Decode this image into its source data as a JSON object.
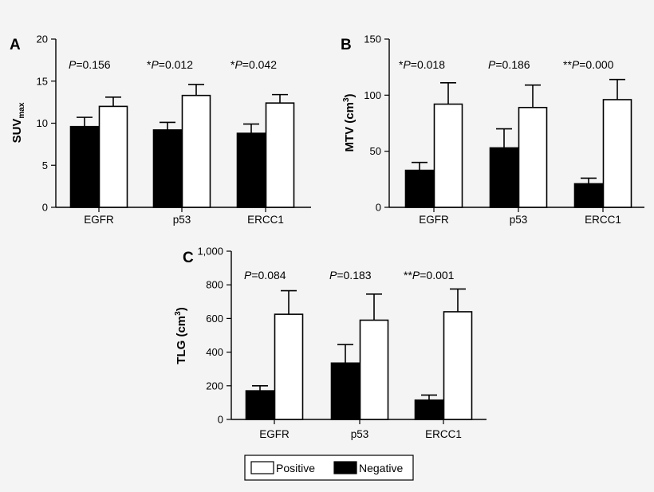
{
  "chart_data": [
    {
      "panel": "A",
      "type": "bar",
      "ylabel_main": "SUV",
      "ylabel_sub": "max",
      "categories": [
        "EGFR",
        "p53",
        "ERCC1"
      ],
      "series": [
        {
          "name": "Negative",
          "values": [
            9.6,
            9.2,
            8.8
          ],
          "errors": [
            1.1,
            0.9,
            1.1
          ]
        },
        {
          "name": "Positive",
          "values": [
            12.0,
            13.3,
            12.4
          ],
          "errors": [
            1.1,
            1.3,
            1.0
          ]
        }
      ],
      "annotations": [
        {
          "prefix": "",
          "p": "P",
          "text": "=0.156"
        },
        {
          "prefix": "*",
          "p": "P",
          "text": "=0.012"
        },
        {
          "prefix": "*",
          "p": "P",
          "text": "=0.042"
        }
      ],
      "ylim": [
        0,
        20
      ],
      "yticks": [
        0,
        5,
        10,
        15,
        20
      ],
      "ytick_labels": [
        "0",
        "5",
        "10",
        "15",
        "20"
      ]
    },
    {
      "panel": "B",
      "type": "bar",
      "ylabel_main": "MTV (cm",
      "ylabel_sup": "3",
      "ylabel_end": ")",
      "categories": [
        "EGFR",
        "p53",
        "ERCC1"
      ],
      "series": [
        {
          "name": "Negative",
          "values": [
            33,
            53,
            21
          ],
          "errors": [
            7,
            17,
            5
          ]
        },
        {
          "name": "Positive",
          "values": [
            92,
            89,
            96
          ],
          "errors": [
            19,
            20,
            18
          ]
        }
      ],
      "annotations": [
        {
          "prefix": "*",
          "p": "P",
          "text": "=0.018"
        },
        {
          "prefix": "",
          "p": "P",
          "text": "=0.186"
        },
        {
          "prefix": "**",
          "p": "P",
          "text": "=0.000"
        }
      ],
      "ylim": [
        0,
        150
      ],
      "yticks": [
        0,
        50,
        100,
        150
      ],
      "ytick_labels": [
        "0",
        "50",
        "100",
        "150"
      ]
    },
    {
      "panel": "C",
      "type": "bar",
      "ylabel_main": "TLG (cm",
      "ylabel_sup": "3",
      "ylabel_end": ")",
      "categories": [
        "EGFR",
        "p53",
        "ERCC1"
      ],
      "series": [
        {
          "name": "Negative",
          "values": [
            170,
            335,
            115
          ],
          "errors": [
            30,
            110,
            30
          ]
        },
        {
          "name": "Positive",
          "values": [
            625,
            590,
            640
          ],
          "errors": [
            140,
            155,
            135
          ]
        }
      ],
      "annotations": [
        {
          "prefix": "",
          "p": "P",
          "text": "=0.084"
        },
        {
          "prefix": "",
          "p": "P",
          "text": "=0.183"
        },
        {
          "prefix": "**",
          "p": "P",
          "text": "=0.001"
        }
      ],
      "ylim": [
        0,
        1000
      ],
      "yticks": [
        0,
        200,
        400,
        600,
        800,
        1000
      ],
      "ytick_labels": [
        "0",
        "200",
        "400",
        "600",
        "800",
        "1,000"
      ]
    }
  ],
  "legend": {
    "items": [
      {
        "label": "Positive",
        "color": "#ffffff"
      },
      {
        "label": "Negative",
        "color": "#000000"
      }
    ]
  },
  "colors": {
    "negative": "#000000",
    "positive": "#ffffff",
    "axis": "#000000"
  }
}
